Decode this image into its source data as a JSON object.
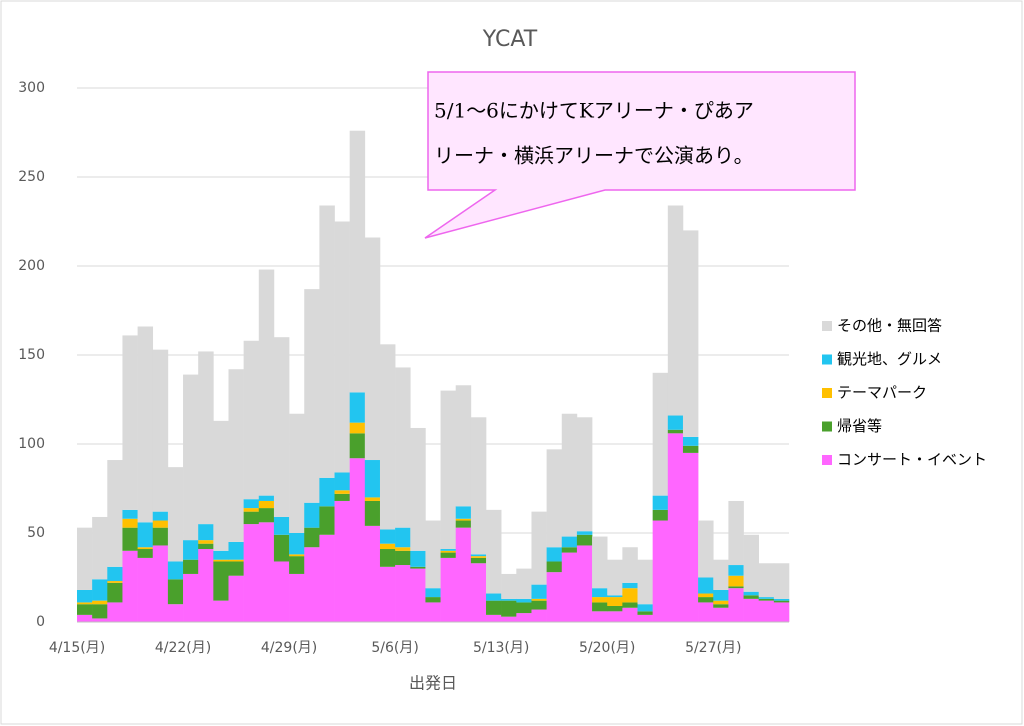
{
  "chart_data": {
    "type": "stacked_bar",
    "title": "YCAT",
    "x_label": "出発日",
    "categories": [
      "4/15(月)",
      null,
      null,
      null,
      null,
      null,
      null,
      "4/22(月)",
      null,
      null,
      null,
      null,
      null,
      null,
      "4/29(月)",
      null,
      null,
      null,
      null,
      null,
      null,
      "5/6(月)",
      null,
      null,
      null,
      null,
      null,
      null,
      "5/13(月)",
      null,
      null,
      null,
      null,
      null,
      null,
      "5/20(月)",
      null,
      null,
      null,
      null,
      null,
      null,
      "5/27(月)",
      null,
      null,
      null,
      null
    ],
    "series": [
      {
        "name": "コンサート・イベント",
        "color": "#ff66ff",
        "values": [
          4,
          2,
          11,
          40,
          36,
          43,
          10,
          27,
          41,
          12,
          26,
          55,
          56,
          34,
          27,
          42,
          49,
          68,
          92,
          54,
          31,
          32,
          30,
          11,
          36,
          53,
          33,
          4,
          3,
          5,
          7,
          28,
          39,
          43,
          6,
          6,
          8,
          4,
          57,
          106,
          95,
          11,
          8,
          19,
          13,
          12,
          11
        ]
      },
      {
        "name": "帰省等",
        "color": "#4aa02c",
        "values": [
          6,
          8,
          11,
          13,
          5,
          10,
          14,
          8,
          3,
          22,
          8,
          7,
          8,
          15,
          10,
          11,
          16,
          4,
          14,
          14,
          10,
          8,
          1,
          3,
          3,
          4,
          3,
          8,
          9,
          6,
          5,
          6,
          3,
          6,
          5,
          3,
          3,
          2,
          6,
          2,
          4,
          3,
          2,
          1,
          2,
          1,
          1
        ]
      },
      {
        "name": "テーマパーク",
        "color": "#ffc000",
        "values": [
          1,
          2,
          1,
          5,
          1,
          4,
          0,
          0,
          2,
          1,
          1,
          2,
          4,
          0,
          1,
          0,
          0,
          2,
          6,
          2,
          3,
          2,
          0,
          0,
          1,
          1,
          1,
          0,
          0,
          0,
          1,
          0,
          0,
          0,
          3,
          5,
          8,
          0,
          0,
          0,
          0,
          2,
          2,
          6,
          0,
          0,
          0
        ]
      },
      {
        "name": "観光地、グルメ",
        "color": "#22c5f0",
        "values": [
          7,
          12,
          8,
          5,
          14,
          5,
          10,
          11,
          9,
          5,
          10,
          5,
          3,
          10,
          12,
          14,
          16,
          10,
          17,
          21,
          8,
          11,
          9,
          5,
          1,
          7,
          1,
          4,
          1,
          2,
          8,
          8,
          6,
          2,
          5,
          1,
          3,
          4,
          8,
          8,
          5,
          9,
          6,
          6,
          2,
          1,
          1
        ]
      },
      {
        "name": "その他・無回答",
        "color": "#d9d9d9",
        "values": [
          35,
          35,
          60,
          98,
          110,
          91,
          53,
          93,
          97,
          73,
          97,
          89,
          127,
          101,
          67,
          120,
          153,
          141,
          147,
          125,
          104,
          90,
          69,
          38,
          89,
          68,
          77,
          47,
          14,
          17,
          41,
          55,
          69,
          64,
          29,
          20,
          20,
          25,
          69,
          118,
          116,
          32,
          17,
          36,
          32,
          19,
          20
        ]
      }
    ],
    "ylim": [
      0,
      300
    ],
    "yticks": [
      0,
      50,
      100,
      150,
      200,
      250,
      300
    ],
    "grid": true,
    "annotation": [
      "5/1～6にかけてKアリーナ・ぴあア",
      "リーナ・横浜アリーナで公演あり。"
    ]
  }
}
